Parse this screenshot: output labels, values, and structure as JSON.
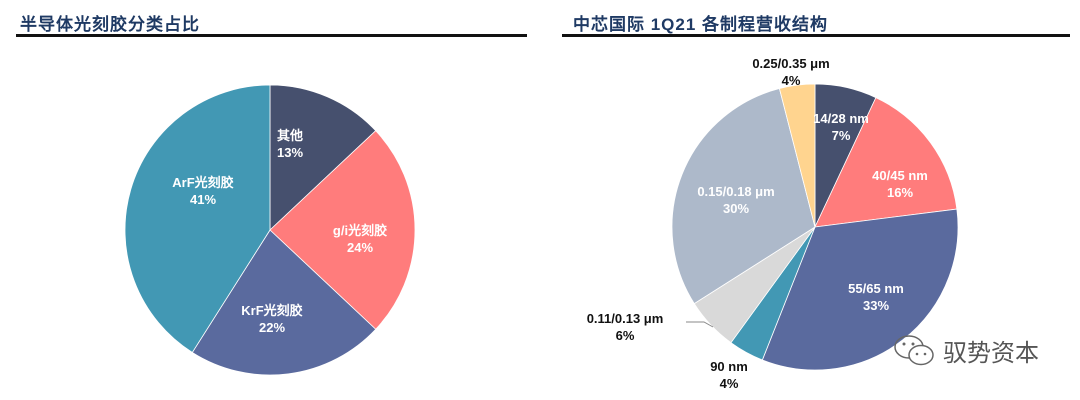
{
  "left": {
    "title": "半导体光刻胶分类占比"
  },
  "right": {
    "title": "中芯国际 1Q21 各制程营收结构"
  },
  "watermark": {
    "text": "驭势资本",
    "icon": "wechat-icon"
  },
  "chart_data": [
    {
      "type": "pie",
      "title": "半导体光刻胶分类占比",
      "slices": [
        {
          "label": "其他",
          "value": 13,
          "color": "#46506e",
          "pct": "13%"
        },
        {
          "label": "g/i光刻胶",
          "value": 24,
          "color": "#ff7c7c",
          "pct": "24%"
        },
        {
          "label": "KrF光刻胶",
          "value": 22,
          "color": "#5a6a9e",
          "pct": "22%"
        },
        {
          "label": "ArF光刻胶",
          "value": 41,
          "color": "#4298b4",
          "pct": "41%"
        }
      ]
    },
    {
      "type": "pie",
      "title": "中芯国际 1Q21 各制程营收结构",
      "slices": [
        {
          "label": "14/28 nm",
          "value": 7,
          "color": "#46506e",
          "pct": "7%"
        },
        {
          "label": "40/45 nm",
          "value": 16,
          "color": "#ff7c7c",
          "pct": "16%"
        },
        {
          "label": "55/65 nm",
          "value": 33,
          "color": "#5a6a9e",
          "pct": "33%"
        },
        {
          "label": "90 nm",
          "value": 4,
          "color": "#4298b4",
          "pct": "4%"
        },
        {
          "label": "0.11/0.13 μm",
          "value": 6,
          "color": "#d9d9d9",
          "pct": "6%"
        },
        {
          "label": "0.15/0.18 μm",
          "value": 30,
          "color": "#adb9ca",
          "pct": "30%"
        },
        {
          "label": "0.25/0.35 μm",
          "value": 4,
          "color": "#ffd48f",
          "pct": "4%"
        }
      ]
    }
  ]
}
